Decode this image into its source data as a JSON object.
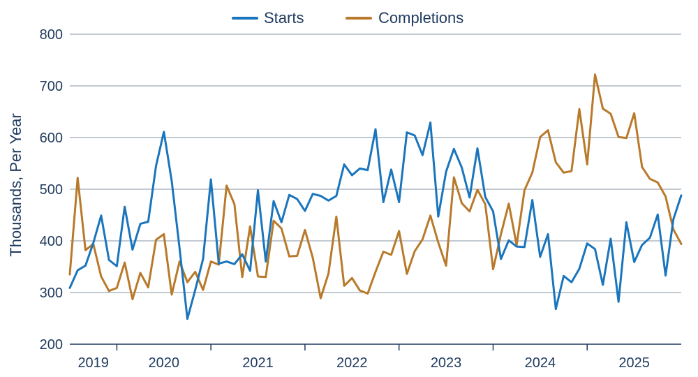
{
  "chart_data": {
    "type": "line",
    "ylabel": "Thousands, Per Year",
    "ylim": [
      200,
      800
    ],
    "yticks": [
      200,
      300,
      400,
      500,
      600,
      700,
      800
    ],
    "grid": true,
    "legend_position": "top-center",
    "year_labels": [
      "2019",
      "2020",
      "2021",
      "2022",
      "2023",
      "2024",
      "2025"
    ],
    "series": [
      {
        "name": "Starts",
        "color": "#1a75bc",
        "values": [
          309,
          343,
          352,
          396,
          449,
          363,
          351,
          466,
          383,
          433,
          437,
          545,
          611,
          516,
          386,
          249,
          305,
          365,
          519,
          356,
          360,
          355,
          374,
          342,
          498,
          360,
          477,
          436,
          489,
          481,
          458,
          491,
          487,
          478,
          487,
          548,
          527,
          540,
          537,
          616,
          475,
          538,
          475,
          610,
          604,
          566,
          629,
          447,
          534,
          578,
          542,
          484,
          579,
          485,
          457,
          365,
          401,
          389,
          388,
          479,
          369,
          413,
          268,
          332,
          320,
          346,
          395,
          384,
          315,
          404,
          282,
          436,
          359,
          392,
          406,
          451,
          333,
          442,
          488
        ]
      },
      {
        "name": "Completions",
        "color": "#b87a2a",
        "values": [
          335,
          522,
          382,
          394,
          331,
          303,
          309,
          358,
          287,
          338,
          310,
          402,
          413,
          296,
          360,
          320,
          340,
          305,
          360,
          354,
          507,
          471,
          330,
          428,
          331,
          330,
          439,
          424,
          370,
          371,
          421,
          367,
          289,
          337,
          447,
          313,
          328,
          304,
          298,
          340,
          379,
          373,
          419,
          336,
          380,
          403,
          449,
          397,
          352,
          523,
          473,
          457,
          499,
          471,
          345,
          413,
          472,
          392,
          498,
          532,
          601,
          614,
          552,
          532,
          535,
          655,
          548,
          722,
          656,
          646,
          601,
          599,
          647,
          543,
          520,
          513,
          486,
          422,
          394
        ]
      }
    ]
  }
}
